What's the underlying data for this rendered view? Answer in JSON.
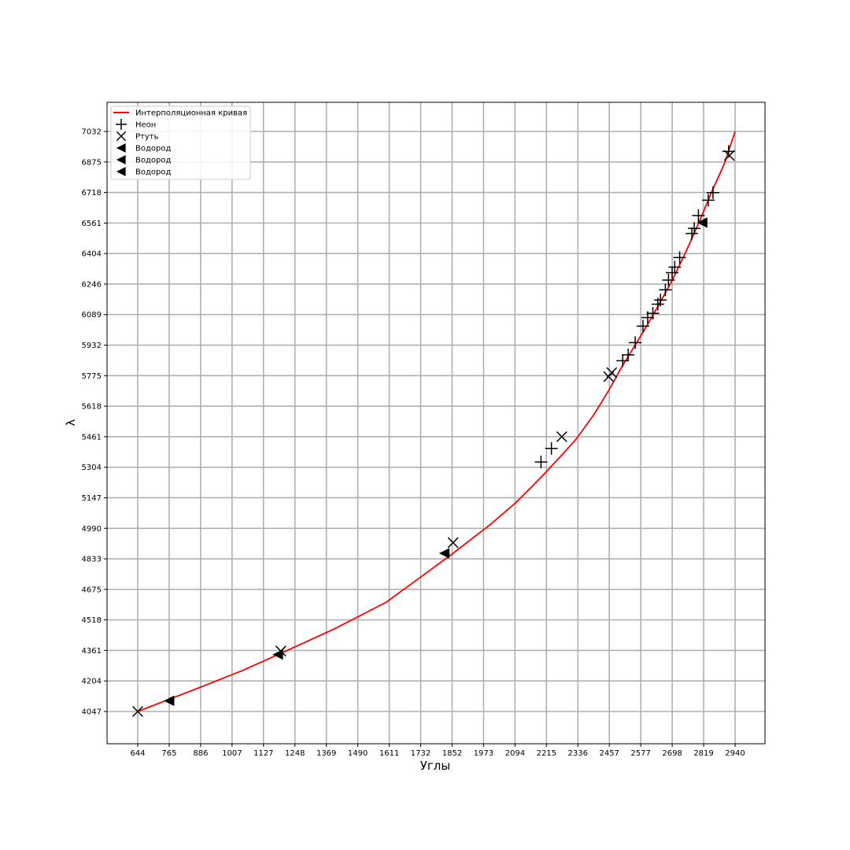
{
  "chart_data": {
    "type": "scatter",
    "xlabel": "Углы",
    "ylabel": "λ",
    "xlim": [
      644,
      2940
    ],
    "ylim": [
      4047,
      7032
    ],
    "grid": true,
    "legend_position": "upper-left",
    "xticks": [
      "644",
      "765",
      "886",
      "1007",
      "1127",
      "1248",
      "1369",
      "1490",
      "1611",
      "1732",
      "1852",
      "1973",
      "2094",
      "2215",
      "2336",
      "2457",
      "2577",
      "2698",
      "2819",
      "2940"
    ],
    "yticks": [
      "4047",
      "4204",
      "4361",
      "4518",
      "4675",
      "4833",
      "4990",
      "5147",
      "5304",
      "5461",
      "5618",
      "5775",
      "5932",
      "6089",
      "6246",
      "6404",
      "6561",
      "6718",
      "6875",
      "7032"
    ],
    "legend": [
      {
        "label": "Интерполяционная кривая",
        "marker": "line",
        "color": "#ff0000"
      },
      {
        "label": "Неон",
        "marker": "plus",
        "color": "#000000"
      },
      {
        "label": "Ртуть",
        "marker": "x",
        "color": "#000000"
      },
      {
        "label": "Водород",
        "marker": "triangle-left",
        "color": "#000000"
      },
      {
        "label": "Водород",
        "marker": "triangle-left",
        "color": "#000000"
      },
      {
        "label": "Водород",
        "marker": "triangle-left",
        "color": "#000000"
      }
    ],
    "series": [
      {
        "name": "Интерполяционная кривая",
        "kind": "line",
        "color": "#ff0000",
        "points": [
          [
            644,
            4047
          ],
          [
            760,
            4107
          ],
          [
            900,
            4180
          ],
          [
            1050,
            4260
          ],
          [
            1200,
            4350
          ],
          [
            1400,
            4472
          ],
          [
            1600,
            4610
          ],
          [
            1850,
            4855
          ],
          [
            2000,
            5010
          ],
          [
            2100,
            5125
          ],
          [
            2200,
            5260
          ],
          [
            2280,
            5375
          ],
          [
            2330,
            5450
          ],
          [
            2400,
            5580
          ],
          [
            2457,
            5705
          ],
          [
            2500,
            5810
          ],
          [
            2550,
            5920
          ],
          [
            2600,
            6030
          ],
          [
            2650,
            6148
          ],
          [
            2700,
            6270
          ],
          [
            2750,
            6410
          ],
          [
            2800,
            6560
          ],
          [
            2850,
            6720
          ],
          [
            2900,
            6870
          ],
          [
            2940,
            7032
          ]
        ]
      },
      {
        "name": "Неон",
        "kind": "scatter",
        "marker": "plus",
        "color": "#000000",
        "points": [
          [
            2194,
            5331
          ],
          [
            2234,
            5401
          ],
          [
            2508,
            5852
          ],
          [
            2529,
            5882
          ],
          [
            2556,
            5945
          ],
          [
            2586,
            6030
          ],
          [
            2604,
            6074
          ],
          [
            2624,
            6096
          ],
          [
            2643,
            6143
          ],
          [
            2653,
            6164
          ],
          [
            2672,
            6217
          ],
          [
            2684,
            6267
          ],
          [
            2698,
            6305
          ],
          [
            2708,
            6334
          ],
          [
            2727,
            6383
          ],
          [
            2774,
            6507
          ],
          [
            2783,
            6533
          ],
          [
            2799,
            6599
          ],
          [
            2837,
            6678
          ],
          [
            2855,
            6717
          ],
          [
            2915,
            6929
          ]
        ]
      },
      {
        "name": "Ртуть",
        "kind": "scatter",
        "marker": "x",
        "color": "#000000",
        "points": [
          [
            644,
            4047
          ],
          [
            1194,
            4358
          ],
          [
            1856,
            4916
          ],
          [
            2274,
            5461
          ],
          [
            2454,
            5770
          ],
          [
            2466,
            5791
          ],
          [
            2918,
            6908
          ]
        ]
      },
      {
        "name": "Водород",
        "kind": "scatter",
        "marker": "triangle-left",
        "color": "#000000",
        "points": [
          [
            765,
            4102
          ],
          [
            1183,
            4340
          ],
          [
            1823,
            4861
          ],
          [
            2814,
            6563
          ]
        ]
      }
    ]
  }
}
